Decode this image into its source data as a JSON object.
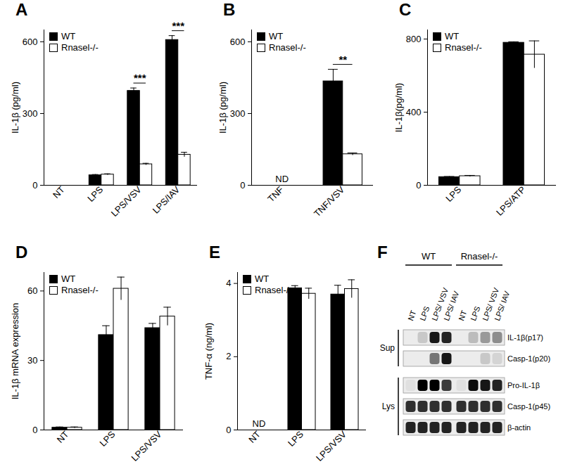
{
  "chart_data": [
    {
      "type": "bar",
      "title": "A",
      "y_label": "IL-1β (pg/ml)",
      "categories": [
        "NT",
        "LPS",
        "LPS/VSV",
        "LPS/IAV"
      ],
      "series": [
        {
          "name": "WT",
          "color": "#000000",
          "values": [
            0,
            42,
            395,
            608
          ],
          "errors": [
            0,
            3,
            12,
            18
          ]
        },
        {
          "name": "Rnasel-/-",
          "color": "#ffffff",
          "values": [
            0,
            45,
            88,
            128
          ],
          "errors": [
            0,
            3,
            4,
            10
          ]
        }
      ],
      "ylim": [
        0,
        650
      ],
      "yticks": [
        0,
        300,
        600
      ],
      "legend": "top-left",
      "annotations": [
        {
          "text": "***",
          "category": "LPS/VSV"
        },
        {
          "text": "***",
          "category": "LPS/IAV"
        }
      ]
    },
    {
      "type": "bar",
      "title": "B",
      "y_label": "IL-1β (pg/ml)",
      "categories": [
        "TNF",
        "TNF/VSV"
      ],
      "series": [
        {
          "name": "WT",
          "color": "#000000",
          "values": [
            null,
            435
          ],
          "errors": [
            null,
            50
          ]
        },
        {
          "name": "Rnasel-/-",
          "color": "#ffffff",
          "values": [
            null,
            130
          ],
          "errors": [
            null,
            5
          ]
        }
      ],
      "ylim": [
        0,
        650
      ],
      "yticks": [
        0,
        300,
        600
      ],
      "legend": "top-left",
      "annotations": [
        {
          "text": "ND",
          "category": "TNF"
        },
        {
          "text": "**",
          "category": "TNF/VSV"
        }
      ]
    },
    {
      "type": "bar",
      "title": "C",
      "y_label": "IL-1β(pg/ml)",
      "categories": [
        "LPS",
        "LPS/ATP"
      ],
      "series": [
        {
          "name": "WT",
          "color": "#000000",
          "values": [
            45,
            780
          ],
          "errors": [
            3,
            5
          ]
        },
        {
          "name": "Rnasel-/-",
          "color": "#ffffff",
          "values": [
            50,
            715
          ],
          "errors": [
            4,
            75
          ]
        }
      ],
      "ylim": [
        0,
        850
      ],
      "yticks": [
        0,
        400,
        800
      ],
      "legend": "top-left"
    },
    {
      "type": "bar",
      "title": "D",
      "y_label": "IL-1β mRNA expression",
      "categories": [
        "NT",
        "LPS",
        "LPS/VSV"
      ],
      "series": [
        {
          "name": "WT",
          "color": "#000000",
          "values": [
            1,
            41,
            44
          ],
          "errors": [
            0.3,
            4,
            2
          ]
        },
        {
          "name": "Rnasel-/-",
          "color": "#ffffff",
          "values": [
            1,
            61,
            49
          ],
          "errors": [
            0.3,
            5,
            4
          ]
        }
      ],
      "ylim": [
        0,
        68
      ],
      "yticks": [
        0,
        30,
        60
      ],
      "legend": "top-left"
    },
    {
      "type": "bar",
      "title": "E",
      "y_label": "TNF-α (ng/ml)",
      "categories": [
        "NT",
        "LPS",
        "LPS/VSV"
      ],
      "series": [
        {
          "name": "WT",
          "color": "#000000",
          "values": [
            null,
            3.87,
            3.7
          ],
          "errors": [
            null,
            0.07,
            0.25
          ]
        },
        {
          "name": "Rnasel-/-",
          "color": "#ffffff",
          "values": [
            null,
            3.72,
            3.85
          ],
          "errors": [
            null,
            0.15,
            0.25
          ]
        }
      ],
      "ylim": [
        0,
        4.3
      ],
      "yticks": [
        0,
        2,
        4
      ],
      "legend": "top-left",
      "annotations": [
        {
          "text": "ND",
          "category": "NT"
        }
      ]
    }
  ],
  "blot": {
    "title": "F",
    "groups": [
      {
        "label": "WT",
        "lanes": [
          "NT",
          "LPS",
          "LPS/ VSV",
          "LPS/ IAV"
        ]
      },
      {
        "label": "Rnasel-/-",
        "lanes": [
          "NT",
          "LPS",
          "LPS/ VSV",
          "LPS/ IAV"
        ]
      }
    ],
    "sections": [
      {
        "label": "Sup",
        "rows": [
          {
            "label": "IL-1β(p17)",
            "intensity": [
              0,
              0.15,
              0.9,
              0.85,
              0,
              0.2,
              0.35,
              0.4
            ]
          },
          {
            "label": "Casp-1(p20)",
            "intensity": [
              0,
              0,
              0.5,
              0.9,
              0,
              0,
              0.15,
              0.1
            ]
          }
        ]
      },
      {
        "label": "Lys",
        "rows": [
          {
            "label": "Pro-IL-1β",
            "intensity": [
              0.05,
              1,
              1,
              0.75,
              0.05,
              0.95,
              0.9,
              0.85
            ]
          },
          {
            "label": "Casp-1(p45)",
            "intensity": [
              0.8,
              0.8,
              0.8,
              0.8,
              0.8,
              0.8,
              0.8,
              0.8
            ]
          },
          {
            "label": "β-actin",
            "intensity": [
              0.85,
              0.85,
              0.85,
              0.85,
              0.85,
              0.85,
              0.85,
              0.85
            ]
          }
        ]
      }
    ]
  }
}
